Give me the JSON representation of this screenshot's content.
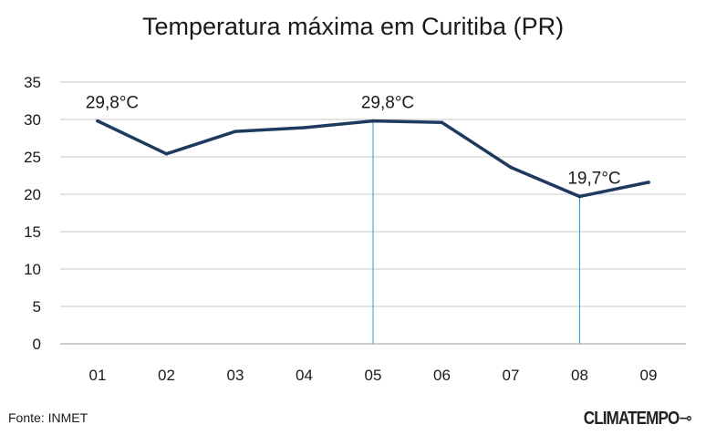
{
  "chart_data": {
    "type": "line",
    "title": "Temperatura máxima em Curitiba (PR)",
    "categories": [
      "01",
      "02",
      "03",
      "04",
      "05",
      "06",
      "07",
      "08",
      "09"
    ],
    "series": [
      {
        "values": [
          29.8,
          25.4,
          28.4,
          28.9,
          29.8,
          29.6,
          23.6,
          19.7,
          21.6
        ],
        "color": "#1f3a5f"
      }
    ],
    "ylim": [
      0,
      35
    ],
    "yticks": [
      "0",
      "5",
      "10",
      "15",
      "20",
      "25",
      "30",
      "35"
    ],
    "grid": true,
    "annotations": [
      {
        "index": 0,
        "text": "29,8°C",
        "dropline": false
      },
      {
        "index": 4,
        "text": "29,8°C",
        "dropline": true
      },
      {
        "index": 7,
        "text": "19,7°C",
        "dropline": true
      }
    ],
    "dropline_color": "#2a9fd6"
  },
  "footer": {
    "source": "Fonte: INMET",
    "brand": "CLIMATEMPO"
  }
}
